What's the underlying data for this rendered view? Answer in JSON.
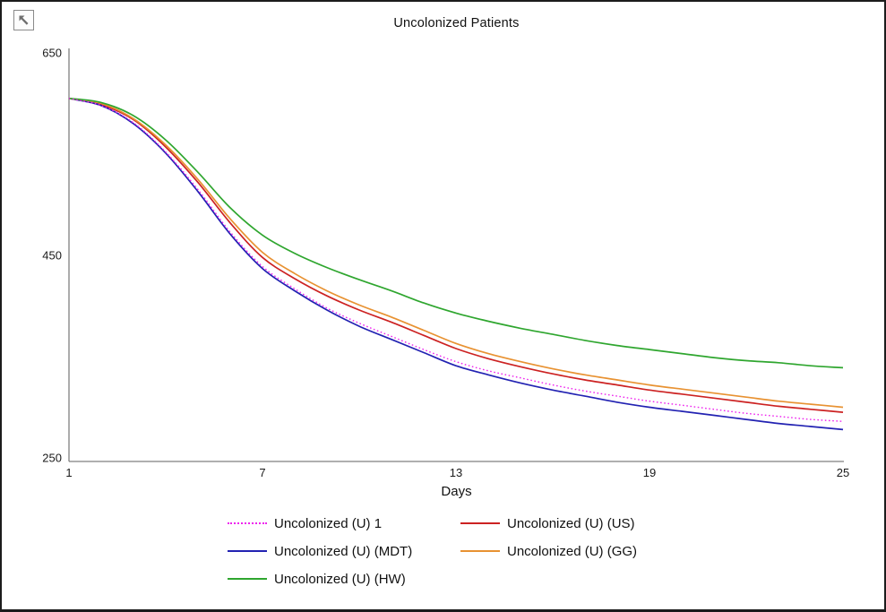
{
  "window": {
    "corner_icon": "nw-arrow-icon"
  },
  "chart_data": {
    "type": "line",
    "title": "Uncolonized Patients",
    "xlabel": "Days",
    "ylabel": "",
    "xlim": [
      1,
      25
    ],
    "ylim": [
      250,
      650
    ],
    "x_ticks": [
      1,
      7,
      13,
      19,
      25
    ],
    "y_ticks": [
      650,
      450,
      250
    ],
    "grid": false,
    "legend_position": "bottom",
    "axis_color": "#7f7f7f",
    "text_color": "#1a1a1a",
    "x": [
      1,
      2,
      3,
      4,
      5,
      6,
      7,
      8,
      9,
      10,
      11,
      12,
      13,
      14,
      15,
      16,
      17,
      18,
      19,
      20,
      21,
      22,
      23,
      24,
      25
    ],
    "series": [
      {
        "name": "Uncolonized (U) 1",
        "color": "#ee22ee",
        "style": "dotted",
        "values": [
          605,
          598,
          581,
          552,
          515,
          473,
          439,
          417,
          398,
          383,
          370,
          357,
          345,
          336,
          329,
          322,
          316,
          311,
          306,
          302,
          298,
          294,
          291,
          288,
          286
        ]
      },
      {
        "name": "Uncolonized (U) (US)",
        "color": "#cc2222",
        "style": "solid",
        "values": [
          605,
          599,
          584,
          557,
          522,
          482,
          448,
          427,
          410,
          396,
          384,
          371,
          358,
          348,
          340,
          333,
          327,
          322,
          317,
          313,
          309,
          305,
          301,
          298,
          295
        ]
      },
      {
        "name": "Uncolonized (U) (MDT)",
        "color": "#2222b2",
        "style": "solid",
        "values": [
          605,
          598,
          580,
          551,
          513,
          471,
          437,
          415,
          396,
          380,
          367,
          354,
          341,
          332,
          324,
          317,
          311,
          305,
          300,
          296,
          292,
          288,
          284,
          281,
          278
        ]
      },
      {
        "name": "Uncolonized (U) (GG)",
        "color": "#e89232",
        "style": "solid",
        "values": [
          605,
          600,
          585,
          559,
          525,
          486,
          453,
          432,
          415,
          401,
          389,
          376,
          363,
          353,
          345,
          338,
          332,
          327,
          322,
          318,
          314,
          310,
          306,
          303,
          300
        ]
      },
      {
        "name": "Uncolonized (U) (HW)",
        "color": "#2fa62f",
        "style": "solid",
        "values": [
          605,
          601,
          588,
          564,
          532,
          497,
          470,
          452,
          438,
          426,
          415,
          403,
          393,
          385,
          378,
          372,
          366,
          361,
          357,
          353,
          349,
          346,
          344,
          341,
          339
        ]
      }
    ]
  }
}
